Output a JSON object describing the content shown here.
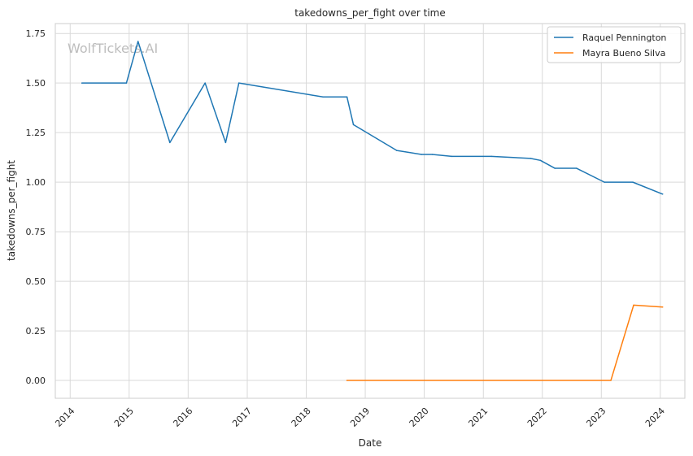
{
  "chart_data": {
    "type": "line",
    "title": "takedowns_per_fight over time",
    "xlabel": "Date",
    "ylabel": "takedowns_per_fight",
    "watermark": "WolfTickets.AI",
    "xlim": [
      "2013-10-01",
      "2024-06-01"
    ],
    "ylim": [
      -0.09,
      1.8
    ],
    "x_ticks": [
      {
        "label": "2014",
        "date": "2014-01-01"
      },
      {
        "label": "2015",
        "date": "2015-01-01"
      },
      {
        "label": "2016",
        "date": "2016-01-01"
      },
      {
        "label": "2017",
        "date": "2017-01-01"
      },
      {
        "label": "2018",
        "date": "2018-01-01"
      },
      {
        "label": "2019",
        "date": "2019-01-01"
      },
      {
        "label": "2020",
        "date": "2020-01-01"
      },
      {
        "label": "2021",
        "date": "2021-01-01"
      },
      {
        "label": "2022",
        "date": "2022-01-01"
      },
      {
        "label": "2023",
        "date": "2023-01-01"
      },
      {
        "label": "2024",
        "date": "2024-01-01"
      }
    ],
    "y_ticks": [
      {
        "label": "0.00",
        "value": 0
      },
      {
        "label": "0.25",
        "value": 0.25
      },
      {
        "label": "0.50",
        "value": 0.5
      },
      {
        "label": "0.75",
        "value": 0.75
      },
      {
        "label": "1.00",
        "value": 1.0
      },
      {
        "label": "1.25",
        "value": 1.25
      },
      {
        "label": "1.50",
        "value": 1.5
      },
      {
        "label": "1.75",
        "value": 1.75
      }
    ],
    "grid": true,
    "legend_position": "top-right",
    "series": [
      {
        "name": "Raquel Pennington",
        "color": "#1f77b4",
        "points": [
          {
            "x": "2014-03-15",
            "y": 1.5
          },
          {
            "x": "2014-12-15",
            "y": 1.5
          },
          {
            "x": "2015-02-25",
            "y": 1.71
          },
          {
            "x": "2015-09-10",
            "y": 1.2
          },
          {
            "x": "2016-04-15",
            "y": 1.5
          },
          {
            "x": "2016-08-20",
            "y": 1.2
          },
          {
            "x": "2016-11-10",
            "y": 1.5
          },
          {
            "x": "2018-04-15",
            "y": 1.43
          },
          {
            "x": "2018-09-10",
            "y": 1.43
          },
          {
            "x": "2018-10-20",
            "y": 1.29
          },
          {
            "x": "2019-07-15",
            "y": 1.16
          },
          {
            "x": "2019-12-15",
            "y": 1.14
          },
          {
            "x": "2020-02-20",
            "y": 1.14
          },
          {
            "x": "2020-06-20",
            "y": 1.13
          },
          {
            "x": "2021-02-20",
            "y": 1.13
          },
          {
            "x": "2021-10-20",
            "y": 1.12
          },
          {
            "x": "2021-12-20",
            "y": 1.11
          },
          {
            "x": "2022-03-20",
            "y": 1.07
          },
          {
            "x": "2022-08-01",
            "y": 1.07
          },
          {
            "x": "2023-01-20",
            "y": 1.0
          },
          {
            "x": "2023-07-15",
            "y": 1.0
          },
          {
            "x": "2024-01-15",
            "y": 0.94
          }
        ]
      },
      {
        "name": "Mayra Bueno Silva",
        "color": "#ff7f0e",
        "points": [
          {
            "x": "2018-09-10",
            "y": 0.0
          },
          {
            "x": "2023-03-01",
            "y": 0.0
          },
          {
            "x": "2023-07-20",
            "y": 0.38
          },
          {
            "x": "2024-01-15",
            "y": 0.37
          }
        ]
      }
    ]
  }
}
